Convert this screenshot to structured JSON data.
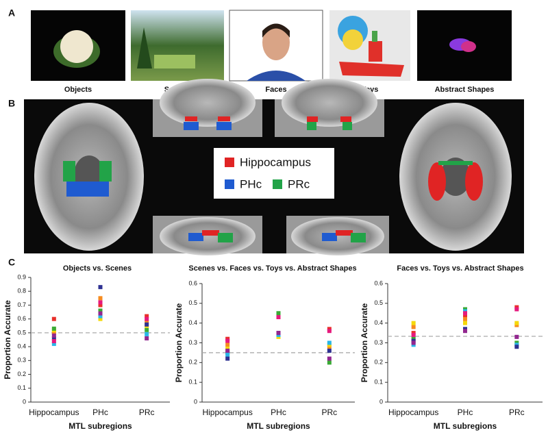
{
  "panels": {
    "a": {
      "label": "A",
      "images": [
        {
          "caption": "Objects"
        },
        {
          "caption": "Scenes"
        },
        {
          "caption": "Faces"
        },
        {
          "caption": "Toys"
        },
        {
          "caption": "Abstract Shapes"
        }
      ]
    },
    "b": {
      "label": "B",
      "legend": [
        {
          "name": "Hippocampus",
          "color": "#e02424"
        },
        {
          "name": "PHc",
          "color": "#1f5bd0"
        },
        {
          "name": "PRc",
          "color": "#22a348"
        }
      ]
    },
    "c": {
      "label": "C"
    }
  },
  "chart_data": [
    {
      "type": "scatter",
      "title": "Objects vs. Scenes",
      "categories": [
        "Hippocampus",
        "PHc",
        "PRc"
      ],
      "ylabel": "Proportion Accurate",
      "xlabel": "MTL subregions",
      "ylim": [
        0,
        0.9
      ],
      "yticks": [
        0,
        0.1,
        0.2,
        0.3,
        0.4,
        0.5,
        0.6,
        0.7,
        0.8,
        0.9
      ],
      "chance_line": 0.5,
      "series": [
        {
          "color": "#e8302a",
          "values": [
            0.6,
            0.7,
            0.62
          ]
        },
        {
          "color": "#f68b1f",
          "values": [
            0.5,
            0.75,
            0.58
          ]
        },
        {
          "color": "#f5d90a",
          "values": [
            0.52,
            0.6,
            0.55
          ]
        },
        {
          "color": "#3aaa35",
          "values": [
            0.53,
            0.66,
            0.52
          ]
        },
        {
          "color": "#29b6e8",
          "values": [
            0.42,
            0.62,
            0.49
          ]
        },
        {
          "color": "#2e3192",
          "values": [
            0.46,
            0.83,
            0.56
          ]
        },
        {
          "color": "#92278f",
          "values": [
            0.48,
            0.64,
            0.46
          ]
        },
        {
          "color": "#e6197d",
          "values": [
            0.44,
            0.72,
            0.6
          ]
        }
      ]
    },
    {
      "type": "scatter",
      "title": "Scenes vs. Faces vs. Toys vs. Abstract Shapes",
      "categories": [
        "Hippocampus",
        "PHc",
        "PRc"
      ],
      "ylabel": "Proportion Accurate",
      "xlabel": "MTL subregions",
      "ylim": [
        0,
        0.6
      ],
      "yticks": [
        0,
        0.1,
        0.2,
        0.3,
        0.4,
        0.5,
        0.6
      ],
      "chance_line": 0.25,
      "series": [
        {
          "color": "#e8302a",
          "values": [
            0.32,
            0.44,
            0.37
          ]
        },
        {
          "color": "#f68b1f",
          "values": [
            0.29,
            0.34,
            0.28
          ]
        },
        {
          "color": "#f5d90a",
          "values": [
            0.27,
            0.33,
            0.29
          ]
        },
        {
          "color": "#3aaa35",
          "values": [
            0.25,
            0.45,
            0.2
          ]
        },
        {
          "color": "#29b6e8",
          "values": [
            0.24,
            0.34,
            0.3
          ]
        },
        {
          "color": "#2e3192",
          "values": [
            0.22,
            0.35,
            0.26
          ]
        },
        {
          "color": "#92278f",
          "values": [
            0.26,
            0.35,
            0.22
          ]
        },
        {
          "color": "#e6197d",
          "values": [
            0.31,
            0.43,
            0.36
          ]
        }
      ]
    },
    {
      "type": "scatter",
      "title": "Faces vs. Toys vs. Abstract Shapes",
      "categories": [
        "Hippocampus",
        "PHc",
        "PRc"
      ],
      "ylabel": "Proportion Accurate",
      "xlabel": "MTL subregions",
      "ylim": [
        0,
        0.6
      ],
      "yticks": [
        0,
        0.1,
        0.2,
        0.3,
        0.4,
        0.5,
        0.6
      ],
      "chance_line": 0.333,
      "series": [
        {
          "color": "#e8302a",
          "values": [
            0.35,
            0.44,
            0.48
          ]
        },
        {
          "color": "#f68b1f",
          "values": [
            0.38,
            0.42,
            0.39
          ]
        },
        {
          "color": "#f5d90a",
          "values": [
            0.4,
            0.4,
            0.4
          ]
        },
        {
          "color": "#3aaa35",
          "values": [
            0.32,
            0.47,
            0.3
          ]
        },
        {
          "color": "#29b6e8",
          "values": [
            0.29,
            0.46,
            0.29
          ]
        },
        {
          "color": "#2e3192",
          "values": [
            0.31,
            0.37,
            0.28
          ]
        },
        {
          "color": "#92278f",
          "values": [
            0.3,
            0.36,
            0.33
          ]
        },
        {
          "color": "#e6197d",
          "values": [
            0.34,
            0.45,
            0.47
          ]
        }
      ]
    }
  ]
}
